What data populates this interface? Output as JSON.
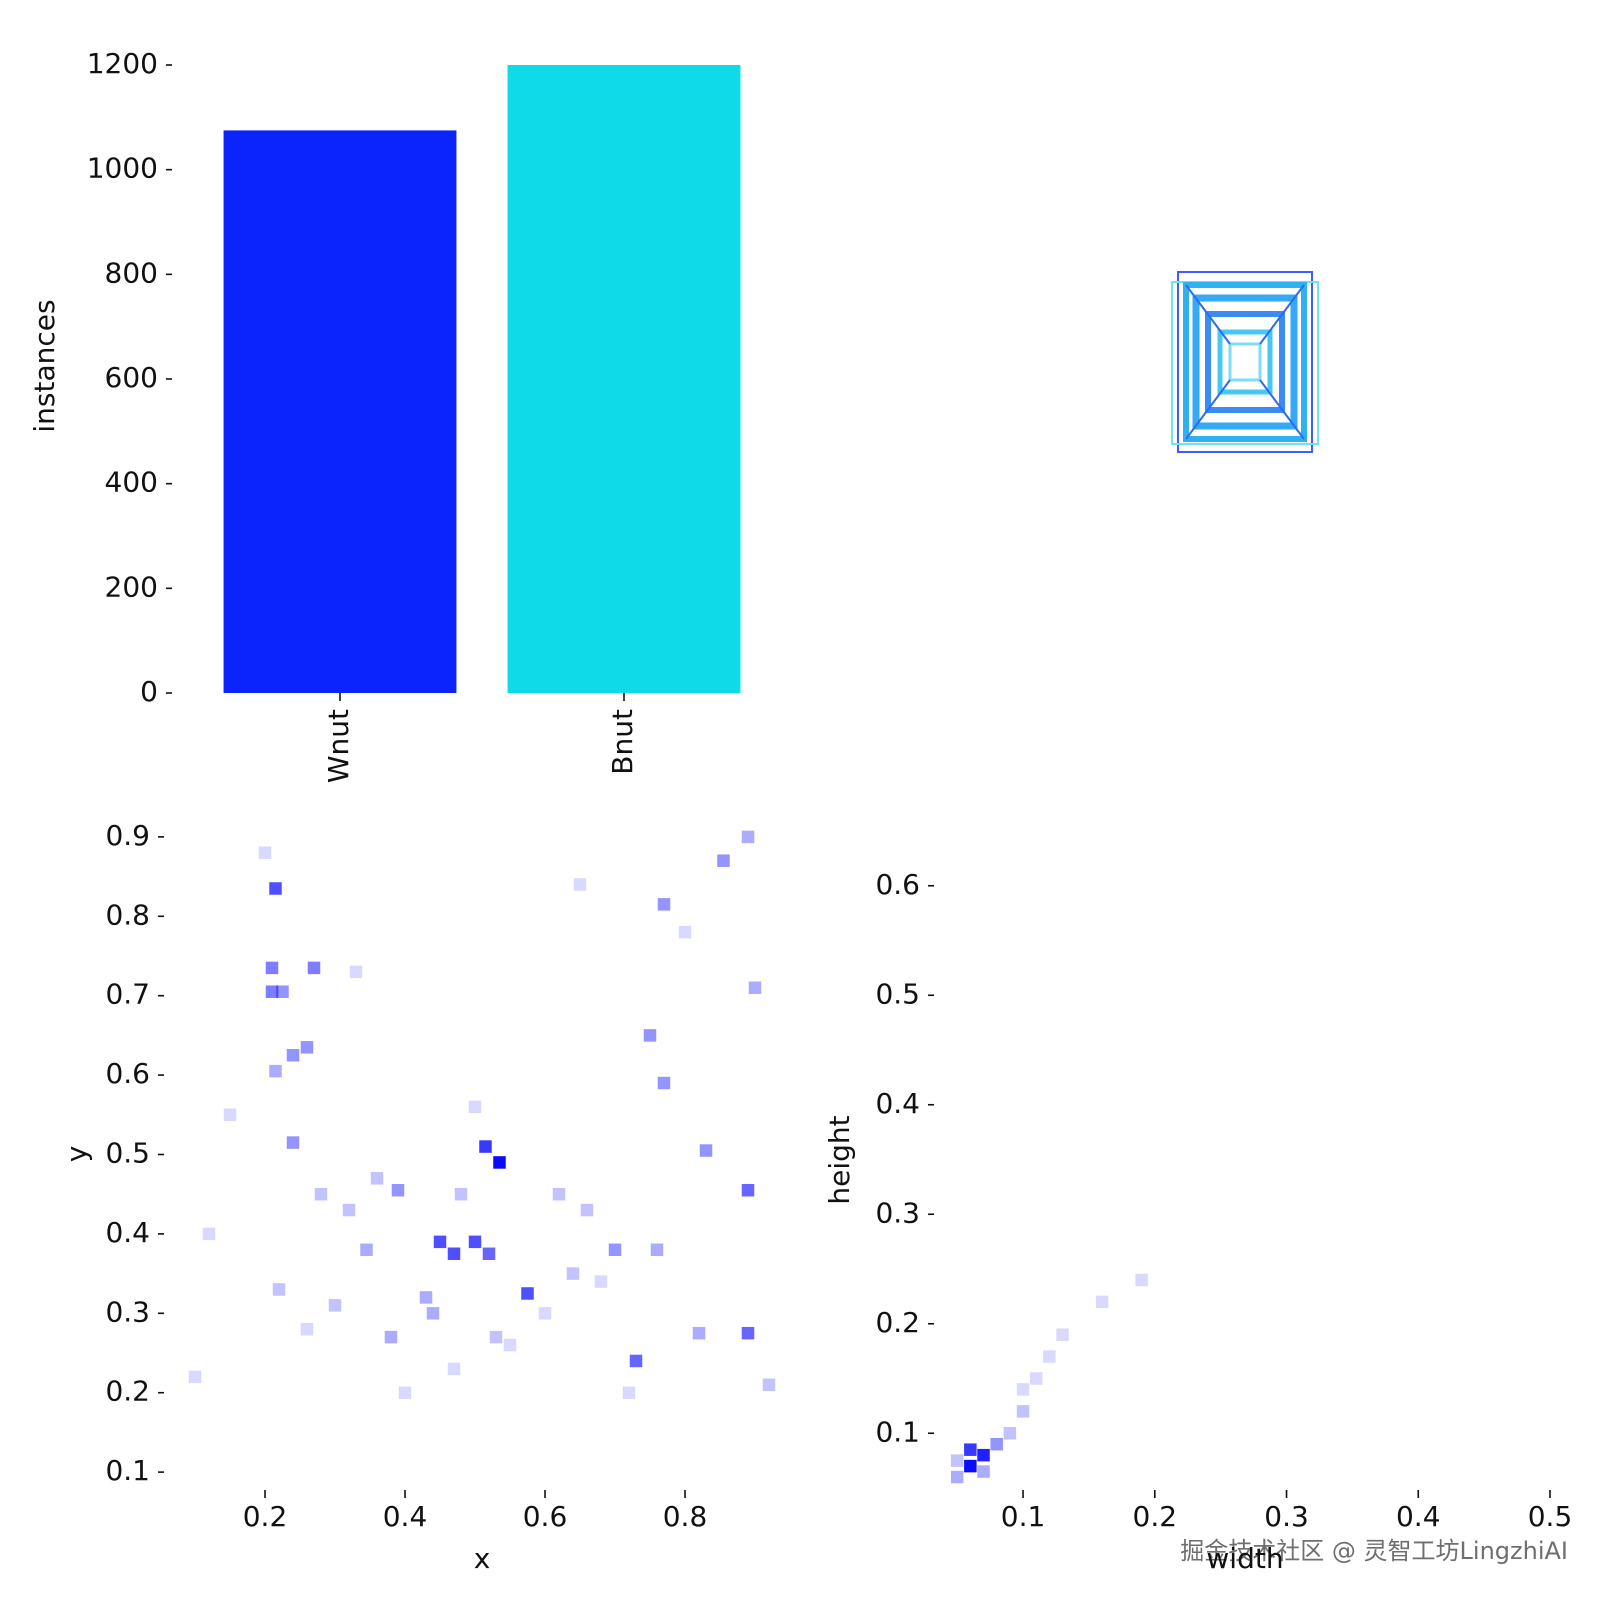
{
  "chart_data": [
    {
      "type": "bar",
      "ylabel": "instances",
      "categories": [
        "Wnut",
        "Bnut"
      ],
      "values": [
        1075,
        1200
      ],
      "colors": [
        "#0b24fb",
        "#0fdbe8"
      ],
      "ylim": [
        0,
        1200
      ],
      "yticks": [
        0,
        200,
        400,
        600,
        800,
        1000,
        1200
      ]
    },
    {
      "type": "hist2d",
      "xlabel": "x",
      "ylabel": "y",
      "color": "#0000ff",
      "xlim": [
        0.07,
        0.95
      ],
      "ylim": [
        0.08,
        0.92
      ],
      "xticks": [
        0.2,
        0.4,
        0.6,
        0.8
      ],
      "yticks": [
        0.1,
        0.2,
        0.3,
        0.4,
        0.5,
        0.6,
        0.7,
        0.8,
        0.9
      ],
      "x": [
        0.535,
        0.515,
        0.45,
        0.47,
        0.5,
        0.52,
        0.575,
        0.215,
        0.89,
        0.89,
        0.73,
        0.21,
        0.21,
        0.225,
        0.27,
        0.77,
        0.855,
        0.89,
        0.75,
        0.77,
        0.83,
        0.24,
        0.39,
        0.345,
        0.24,
        0.215,
        0.26,
        0.7,
        0.76,
        0.82,
        0.44,
        0.43,
        0.38,
        0.9,
        0.22,
        0.28,
        0.62,
        0.66,
        0.36,
        0.32,
        0.92,
        0.53,
        0.48,
        0.64,
        0.3,
        0.1,
        0.15,
        0.26,
        0.4,
        0.47,
        0.68,
        0.8,
        0.65,
        0.2,
        0.12,
        0.5,
        0.6,
        0.72,
        0.33,
        0.55
      ],
      "y": [
        0.49,
        0.51,
        0.39,
        0.375,
        0.39,
        0.375,
        0.325,
        0.835,
        0.455,
        0.275,
        0.24,
        0.735,
        0.705,
        0.705,
        0.735,
        0.815,
        0.87,
        0.9,
        0.65,
        0.59,
        0.505,
        0.515,
        0.455,
        0.38,
        0.625,
        0.605,
        0.635,
        0.38,
        0.38,
        0.275,
        0.3,
        0.32,
        0.27,
        0.71,
        0.33,
        0.45,
        0.45,
        0.43,
        0.47,
        0.43,
        0.21,
        0.27,
        0.45,
        0.35,
        0.31,
        0.22,
        0.55,
        0.28,
        0.2,
        0.23,
        0.34,
        0.78,
        0.84,
        0.88,
        0.4,
        0.56,
        0.3,
        0.2,
        0.73,
        0.26
      ],
      "values": [
        10,
        8,
        7,
        7,
        7,
        6,
        7,
        7,
        6,
        6,
        6,
        5,
        5,
        4,
        5,
        4,
        4,
        3,
        4,
        4,
        4,
        4,
        4,
        3,
        4,
        3,
        4,
        4,
        3,
        3,
        3,
        3,
        3,
        3,
        2,
        2,
        2,
        2,
        2,
        2,
        2,
        2,
        2,
        2,
        2,
        1,
        1,
        1,
        1,
        1,
        1,
        1,
        1,
        1,
        1,
        1,
        1,
        1,
        1,
        1
      ]
    },
    {
      "type": "hist2d",
      "xlabel": "width",
      "ylabel": "height",
      "color": "#0000ff",
      "xlim": [
        0.04,
        0.5
      ],
      "ylim": [
        0.05,
        0.65
      ],
      "xticks": [
        0.1,
        0.2,
        0.3,
        0.4,
        0.5
      ],
      "yticks": [
        0.1,
        0.2,
        0.3,
        0.4,
        0.5,
        0.6
      ],
      "x": [
        0.06,
        0.07,
        0.06,
        0.08,
        0.05,
        0.09,
        0.1,
        0.11,
        0.12,
        0.13,
        0.16,
        0.19,
        0.07,
        0.05,
        0.1
      ],
      "y": [
        0.07,
        0.08,
        0.085,
        0.09,
        0.06,
        0.1,
        0.12,
        0.15,
        0.17,
        0.19,
        0.22,
        0.24,
        0.065,
        0.075,
        0.14
      ],
      "values": [
        10,
        9,
        8,
        4,
        3,
        2,
        2,
        1,
        1,
        1,
        1,
        1,
        3,
        2,
        1
      ]
    }
  ],
  "watermark": "掘金技术社区 @ 灵智工坊LingzhiAI"
}
